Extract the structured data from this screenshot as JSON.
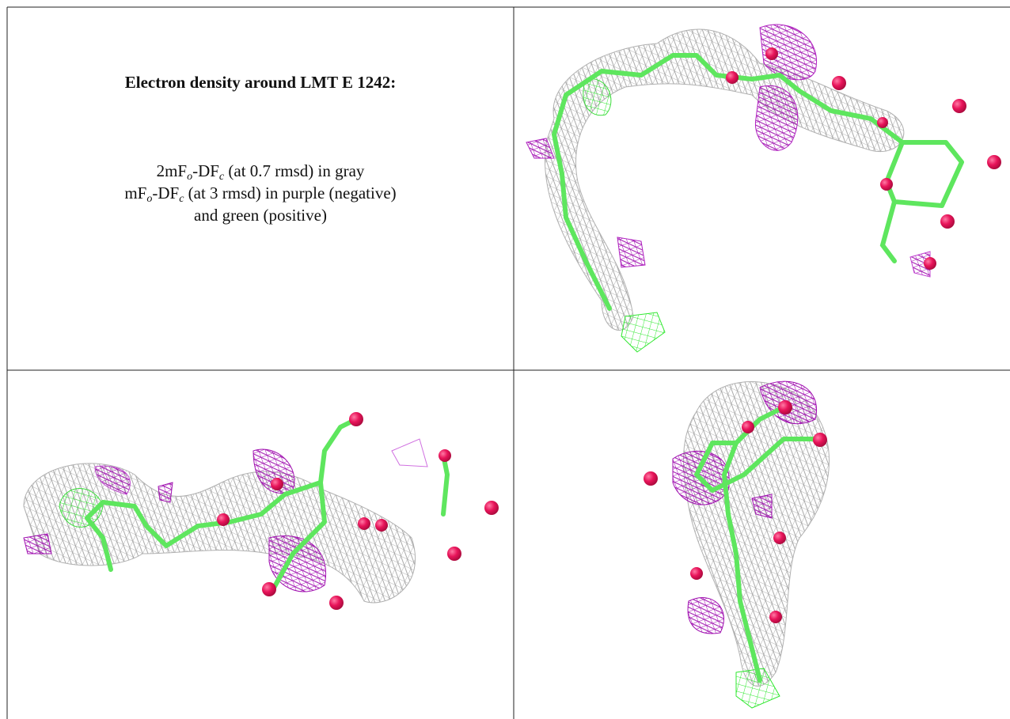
{
  "heading": "Electron density around LMT E 1242:",
  "legend_lines": [
    [
      "2mF",
      "o",
      "-DF",
      "c",
      " (at 0.7 rmsd) in gray"
    ],
    [
      "mF",
      "o",
      "-DF",
      "c",
      " (at 3 rmsd) in purple (negative)"
    ],
    [
      "and green (positive)"
    ]
  ]
}
